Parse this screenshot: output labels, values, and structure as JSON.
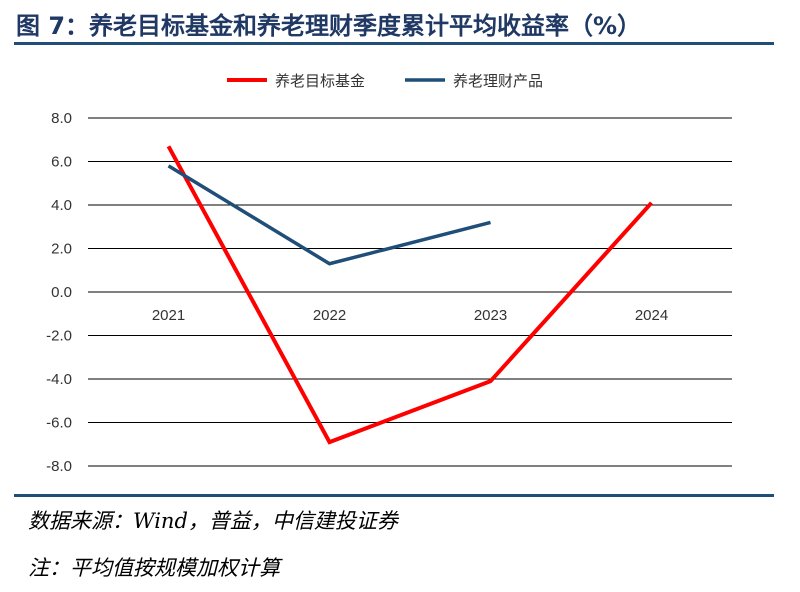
{
  "header": {
    "title": "图 7：养老目标基金和养老理财季度累计平均收益率（%）"
  },
  "footer": {
    "source": "数据来源：Wind，普益，中信建投证券",
    "note": "注：平均值按规模加权计算"
  },
  "chart_data": {
    "type": "line",
    "categories": [
      "2021",
      "2022",
      "2023",
      "2024"
    ],
    "series": [
      {
        "name": "养老目标基金",
        "color": "#ff0000",
        "values": [
          6.7,
          -6.9,
          -4.1,
          4.1
        ]
      },
      {
        "name": "养老理财产品",
        "color": "#1f4e79",
        "values": [
          5.8,
          1.3,
          3.2,
          null
        ]
      }
    ],
    "yticks": [
      "8.0",
      "6.0",
      "4.0",
      "2.0",
      "0.0",
      "-2.0",
      "-4.0",
      "-6.0",
      "-8.0"
    ],
    "ylim": [
      -8,
      8
    ],
    "grid": true,
    "legend": "top-center"
  }
}
